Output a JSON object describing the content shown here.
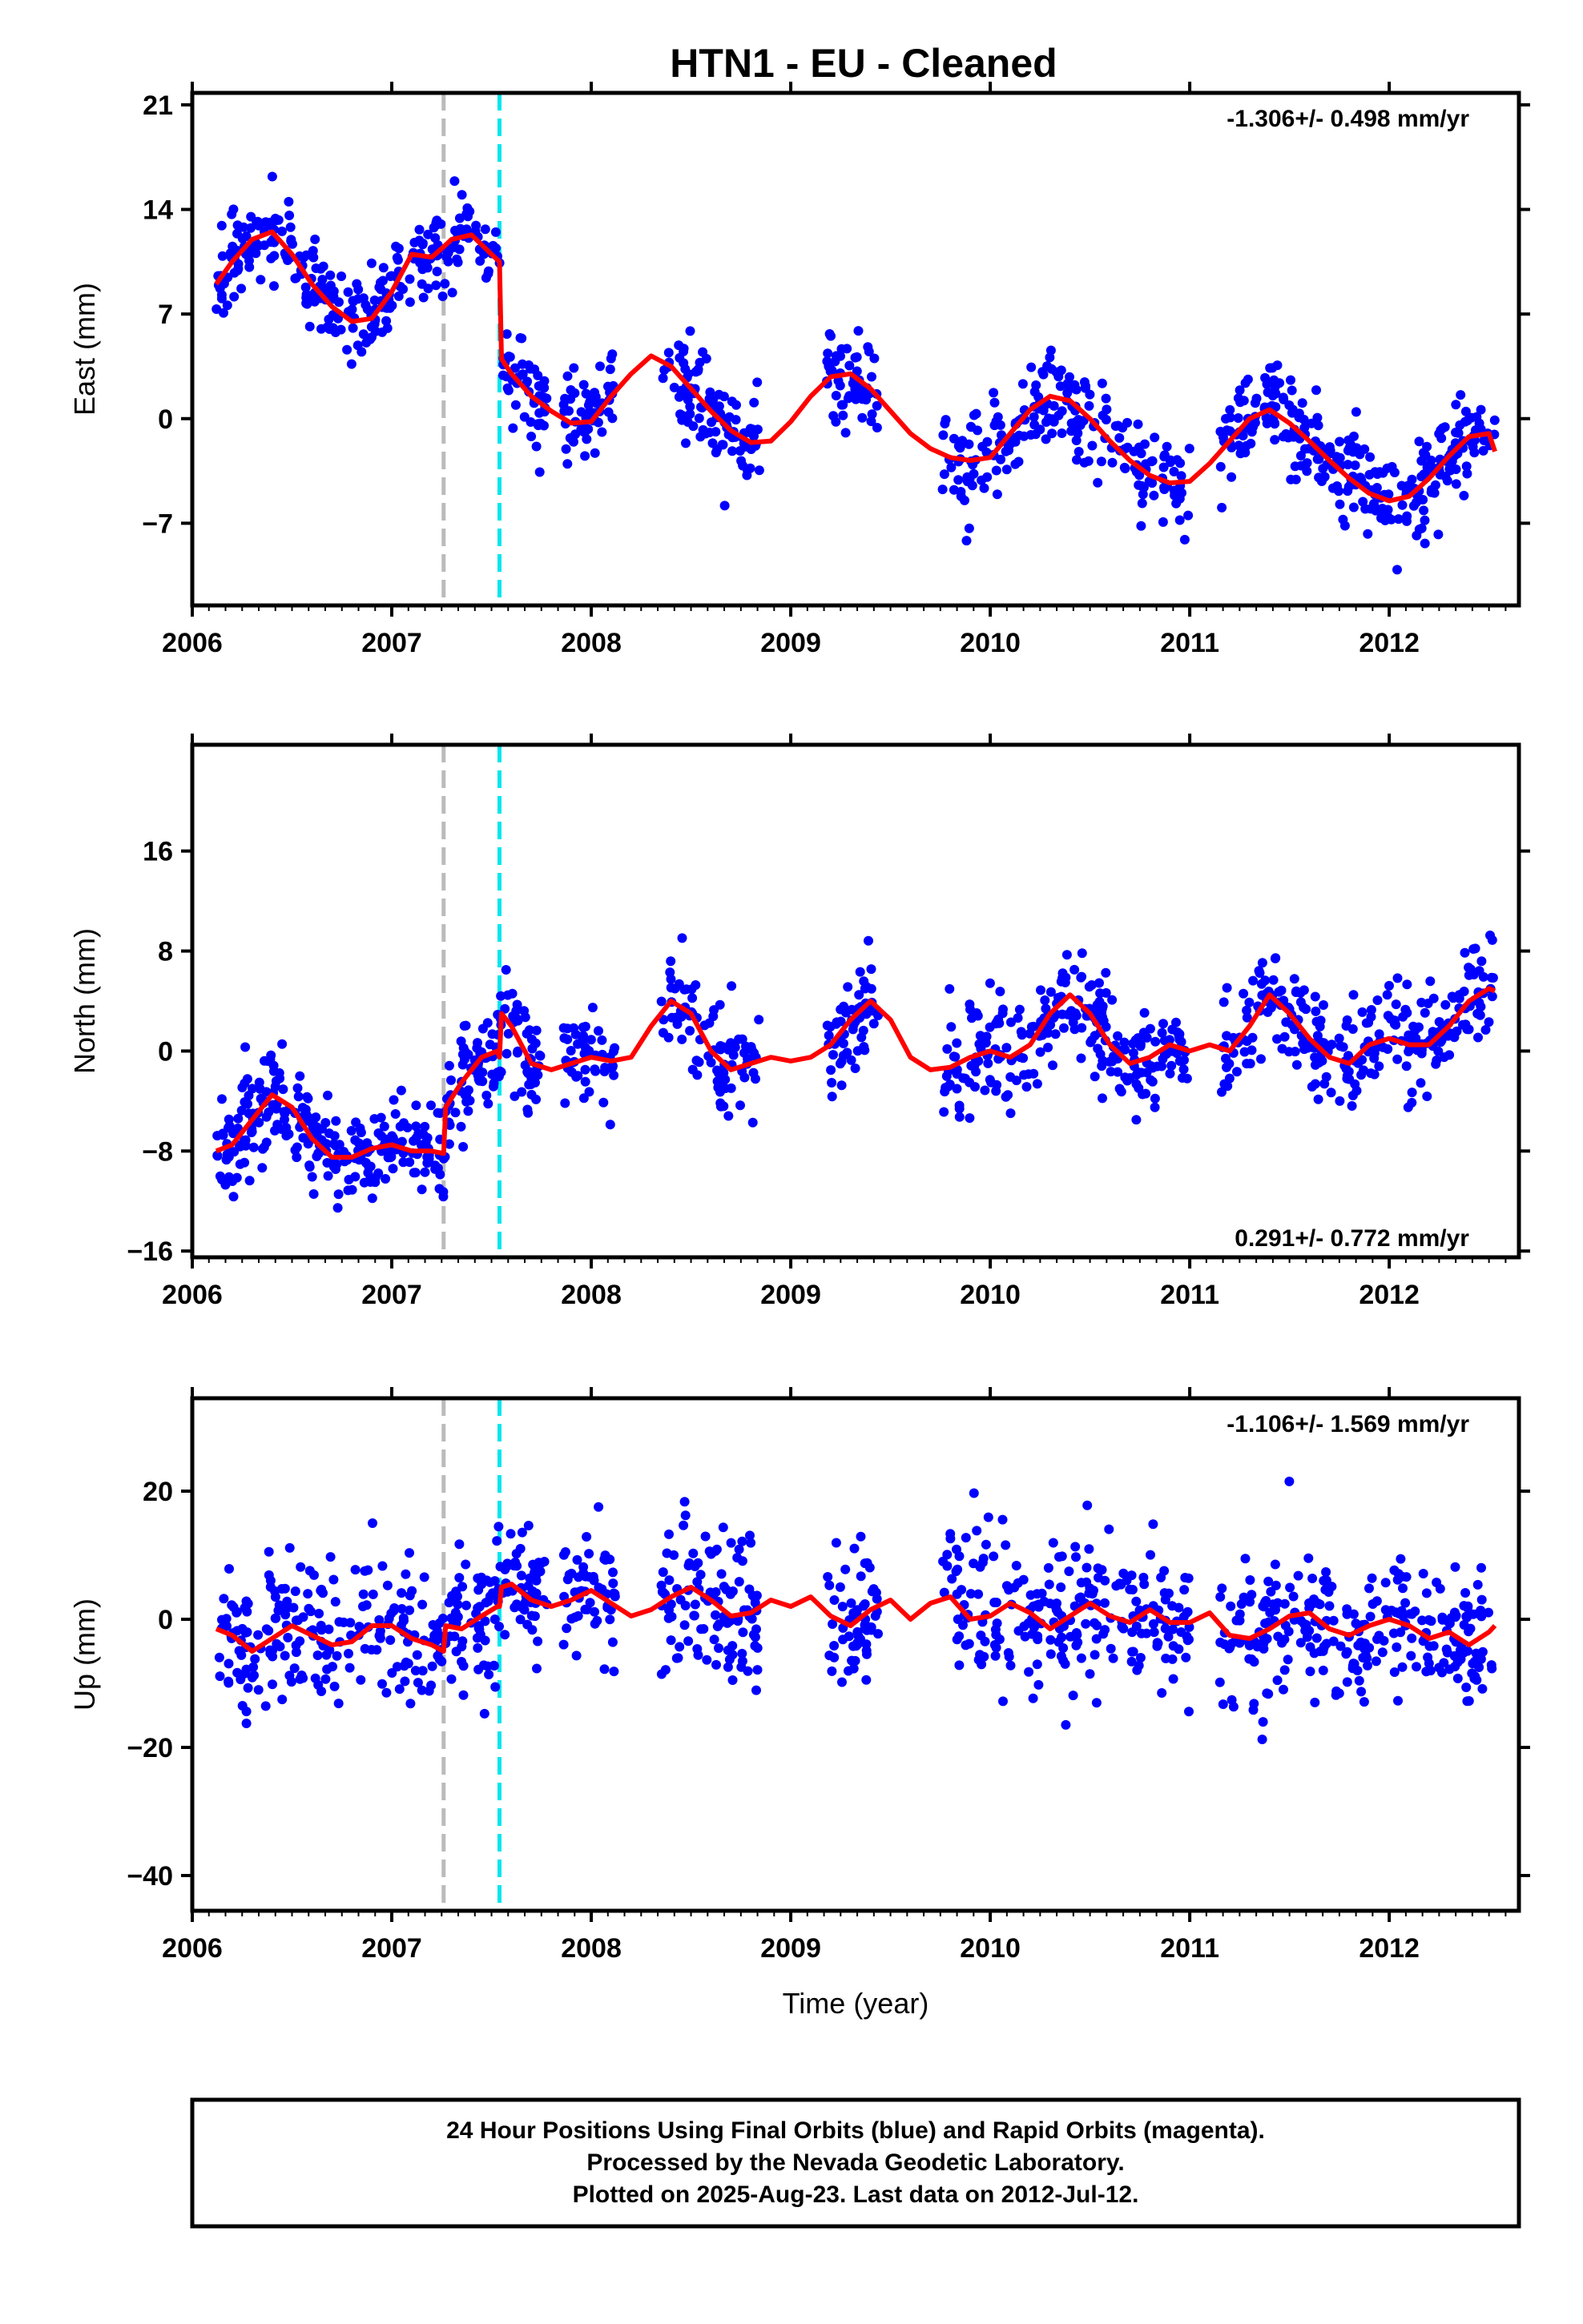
{
  "title": "HTN1  - EU - Cleaned",
  "colors": {
    "points": "#0000ff",
    "fit": "#ff0000",
    "offset_gray": "#bbbbbb",
    "offset_cyan": "#00e5ee",
    "frame": "#000000"
  },
  "chart_data": [
    {
      "type": "scatter",
      "ylabel": "East (mm)",
      "xlabel": "",
      "xlim": [
        2006.0,
        2012.65
      ],
      "ylim": [
        -12.5,
        21.8
      ],
      "yticks": [
        21,
        14,
        7,
        0,
        -7
      ],
      "xticks": [
        2006,
        2007,
        2008,
        2009,
        2010,
        2011,
        2012
      ],
      "rate_label": "-1.306+/- 0.498 mm/yr",
      "rate_position": "top-right",
      "offsets": [
        2007.26,
        2007.54
      ],
      "fit": {
        "x": [
          2006.12,
          2006.2,
          2006.3,
          2006.4,
          2006.5,
          2006.6,
          2006.7,
          2006.8,
          2006.9,
          2007.0,
          2007.1,
          2007.2,
          2007.26,
          2007.3,
          2007.4,
          2007.5,
          2007.54,
          2007.55,
          2007.6,
          2007.7,
          2007.8,
          2007.9,
          2008.0,
          2008.1,
          2008.2,
          2008.3,
          2008.4,
          2008.5,
          2008.6,
          2008.7,
          2008.8,
          2008.9,
          2009.0,
          2009.1,
          2009.2,
          2009.3,
          2009.4,
          2009.5,
          2009.6,
          2009.7,
          2009.8,
          2009.9,
          2010.0,
          2010.1,
          2010.2,
          2010.3,
          2010.4,
          2010.5,
          2010.6,
          2010.7,
          2010.8,
          2010.9,
          2011.0,
          2011.1,
          2011.2,
          2011.3,
          2011.4,
          2011.5,
          2011.6,
          2011.7,
          2011.8,
          2011.9,
          2012.0,
          2012.1,
          2012.2,
          2012.3,
          2012.4,
          2012.5,
          2012.53
        ],
        "y": [
          9.0,
          10.5,
          12.0,
          12.5,
          11.0,
          9.0,
          7.5,
          6.5,
          6.7,
          8.5,
          11.0,
          10.8,
          11.5,
          12.0,
          12.3,
          11.0,
          10.5,
          4.0,
          3.0,
          1.5,
          0.5,
          -0.3,
          -0.2,
          1.5,
          3.0,
          4.2,
          3.5,
          2.0,
          0.5,
          -0.8,
          -1.6,
          -1.5,
          -0.2,
          1.5,
          2.8,
          3.0,
          2.0,
          0.5,
          -1.0,
          -2.0,
          -2.6,
          -2.8,
          -2.6,
          -1.0,
          0.6,
          1.5,
          1.2,
          0.0,
          -1.5,
          -2.8,
          -3.8,
          -4.3,
          -4.2,
          -3.0,
          -1.5,
          0.0,
          0.6,
          -0.3,
          -1.5,
          -2.8,
          -4.0,
          -5.0,
          -5.5,
          -5.2,
          -4.0,
          -2.5,
          -1.2,
          -1.0,
          -2.2
        ]
      },
      "points_note_none": ""
    },
    {
      "type": "scatter",
      "ylabel": "North (mm)",
      "xlabel": "",
      "xlim": [
        2006.0,
        2012.65
      ],
      "ylim": [
        -16.5,
        24.5
      ],
      "yticks": [
        16,
        8,
        0,
        -8,
        -16
      ],
      "xticks": [
        2006,
        2007,
        2008,
        2009,
        2010,
        2011,
        2012
      ],
      "rate_label": "0.291+/- 0.772 mm/yr",
      "rate_position": "bottom-right",
      "offsets": [
        2007.26,
        2007.54
      ],
      "fit": {
        "x": [
          2006.12,
          2006.2,
          2006.3,
          2006.4,
          2006.5,
          2006.6,
          2006.7,
          2006.8,
          2006.9,
          2007.0,
          2007.1,
          2007.2,
          2007.26,
          2007.27,
          2007.35,
          2007.45,
          2007.53,
          2007.54,
          2007.55,
          2007.6,
          2007.7,
          2007.8,
          2007.9,
          2008.0,
          2008.1,
          2008.2,
          2008.3,
          2008.4,
          2008.5,
          2008.6,
          2008.7,
          2008.8,
          2008.9,
          2009.0,
          2009.1,
          2009.2,
          2009.3,
          2009.4,
          2009.5,
          2009.6,
          2009.7,
          2009.8,
          2009.9,
          2010.0,
          2010.1,
          2010.2,
          2010.3,
          2010.4,
          2010.5,
          2010.6,
          2010.7,
          2010.8,
          2010.9,
          2011.0,
          2011.1,
          2011.2,
          2011.3,
          2011.4,
          2011.5,
          2011.6,
          2011.7,
          2011.8,
          2011.9,
          2012.0,
          2012.1,
          2012.2,
          2012.3,
          2012.4,
          2012.5,
          2012.53
        ],
        "y": [
          -8.0,
          -7.5,
          -5.5,
          -3.5,
          -4.5,
          -7.0,
          -8.5,
          -8.5,
          -7.8,
          -7.5,
          -8.0,
          -8.0,
          -8.2,
          -4.5,
          -2.5,
          -0.5,
          0.0,
          -0.5,
          3.0,
          2.0,
          -1.0,
          -1.5,
          -1.0,
          -0.5,
          -0.8,
          -0.5,
          2.0,
          4.0,
          3.0,
          0.0,
          -1.5,
          -1.0,
          -0.5,
          -0.8,
          -0.5,
          0.5,
          2.5,
          4.0,
          2.5,
          -0.5,
          -1.5,
          -1.3,
          -0.5,
          0.0,
          -0.5,
          0.5,
          3.0,
          4.5,
          3.0,
          0.5,
          -1.0,
          -0.5,
          0.5,
          0.0,
          0.5,
          0.0,
          2.0,
          4.5,
          3.0,
          1.0,
          -0.5,
          -1.0,
          0.5,
          1.0,
          0.5,
          0.5,
          2.0,
          4.0,
          5.0,
          4.8
        ]
      }
    },
    {
      "type": "scatter",
      "ylabel": "Up (mm)",
      "xlabel": "Time (year)",
      "xlim": [
        2006.0,
        2012.65
      ],
      "ylim": [
        -45.5,
        34.5
      ],
      "yticks": [
        20,
        0,
        -20,
        -40
      ],
      "xticks": [
        2006,
        2007,
        2008,
        2009,
        2010,
        2011,
        2012
      ],
      "rate_label": "-1.106+/- 1.569 mm/yr",
      "rate_position": "top-right",
      "offsets": [
        2007.26,
        2007.54
      ],
      "fit": {
        "x": [
          2006.12,
          2006.2,
          2006.3,
          2006.4,
          2006.5,
          2006.6,
          2006.7,
          2006.8,
          2006.9,
          2007.0,
          2007.1,
          2007.2,
          2007.26,
          2007.27,
          2007.35,
          2007.45,
          2007.53,
          2007.54,
          2007.55,
          2007.6,
          2007.7,
          2007.8,
          2007.9,
          2008.0,
          2008.1,
          2008.2,
          2008.3,
          2008.4,
          2008.5,
          2008.6,
          2008.7,
          2008.8,
          2008.9,
          2009.0,
          2009.1,
          2009.2,
          2009.3,
          2009.4,
          2009.5,
          2009.6,
          2009.7,
          2009.8,
          2009.9,
          2010.0,
          2010.1,
          2010.2,
          2010.3,
          2010.4,
          2010.5,
          2010.6,
          2010.7,
          2010.8,
          2010.9,
          2011.0,
          2011.1,
          2011.2,
          2011.3,
          2011.4,
          2011.5,
          2011.6,
          2011.7,
          2011.8,
          2011.9,
          2012.0,
          2012.1,
          2012.2,
          2012.3,
          2012.4,
          2012.5,
          2012.53
        ],
        "y": [
          -1.5,
          -2.5,
          -5.0,
          -3.0,
          -1.0,
          -2.5,
          -4.0,
          -3.5,
          -1.0,
          -1.0,
          -3.0,
          -4.0,
          -5.0,
          -1.0,
          -1.5,
          0.5,
          2.0,
          2.0,
          5.0,
          5.5,
          3.0,
          2.0,
          3.0,
          4.5,
          2.5,
          0.5,
          1.5,
          3.5,
          5.0,
          3.0,
          0.5,
          1.0,
          3.0,
          2.0,
          3.5,
          0.5,
          -1.0,
          1.5,
          3.0,
          0.0,
          2.5,
          3.5,
          0.0,
          0.5,
          2.5,
          1.0,
          -1.5,
          0.5,
          2.5,
          0.5,
          -0.5,
          1.5,
          -0.5,
          -0.5,
          1.0,
          -2.5,
          -3.0,
          -1.5,
          0.5,
          1.0,
          -1.5,
          -2.5,
          -1.0,
          0.0,
          -1.0,
          -3.0,
          -2.0,
          -4.0,
          -2.0,
          -1.0
        ]
      }
    }
  ],
  "footer": {
    "line1": "24 Hour Positions Using Final Orbits (blue) and Rapid Orbits (magenta).",
    "line2": "Processed by the Nevada Geodetic Laboratory.",
    "line3": "Plotted on 2025-Aug-23. Last data on 2012-Jul-12."
  }
}
